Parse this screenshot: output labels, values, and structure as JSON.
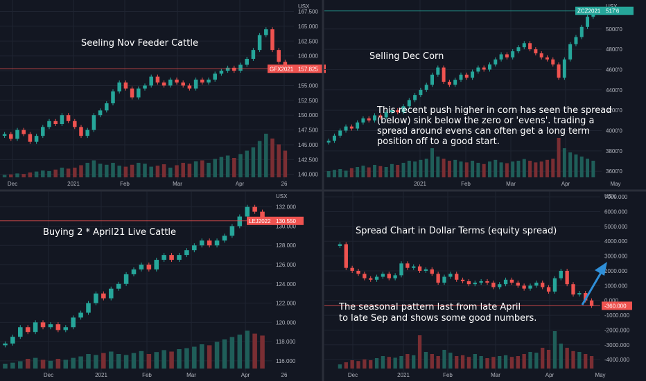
{
  "colors": {
    "background": "#131722",
    "grid": "#1f2431",
    "separator": "#2a2e39",
    "up": "#26a69a",
    "down": "#ef5350",
    "vol_up": "#1f5e59",
    "vol_down": "#7a2e33",
    "arrow": "#2f8fd8"
  },
  "chart_data": [
    {
      "name": "panel-feeder-cattle",
      "type": "candlestick",
      "title": "",
      "annotations": [
        "Seeling Nov Feeder Cattle"
      ],
      "y_axis_label": "USX",
      "y_ticks": [
        "167.500",
        "165.000",
        "162.500",
        "160.000",
        "157.500",
        "155.000",
        "152.500",
        "150.000",
        "147.500",
        "145.000",
        "142.500",
        "140.000"
      ],
      "y_tick_values": [
        167.5,
        165,
        162.5,
        160,
        157.5,
        155,
        152.5,
        150,
        147.5,
        145,
        142.5,
        140
      ],
      "x_ticks": [
        "Dec",
        "2021",
        "Feb",
        "Mar",
        "Apr",
        "26"
      ],
      "last_price_label": "GFX2021",
      "last_price_value": "157.825",
      "last_price": 157.825,
      "ylim": [
        139.5,
        168.5
      ],
      "path": [
        146.8,
        146.0,
        147.5,
        146.8,
        145.5,
        146.5,
        148.0,
        149.0,
        148.5,
        150.0,
        149.0,
        148.0,
        146.5,
        147.5,
        150.0,
        150.8,
        152.0,
        154.0,
        155.5,
        154.5,
        153.0,
        154.5,
        155.0,
        156.5,
        155.5,
        155.0,
        156.0,
        155.5,
        155.0,
        154.5,
        156.0,
        155.5,
        156.0,
        157.0,
        157.5,
        158.0,
        157.5,
        158.5,
        159.5,
        161.0,
        163.5,
        164.5,
        161.0,
        159.0,
        157.8
      ],
      "volume": [
        0.05,
        0.06,
        0.08,
        0.07,
        0.1,
        0.12,
        0.14,
        0.13,
        0.16,
        0.2,
        0.18,
        0.2,
        0.25,
        0.3,
        0.35,
        0.28,
        0.26,
        0.3,
        0.24,
        0.22,
        0.26,
        0.3,
        0.28,
        0.22,
        0.24,
        0.27,
        0.2,
        0.25,
        0.3,
        0.28,
        0.33,
        0.35,
        0.3,
        0.38,
        0.42,
        0.45,
        0.4,
        0.48,
        0.55,
        0.62,
        0.75,
        0.9,
        0.8,
        0.68,
        0.55
      ]
    },
    {
      "name": "panel-corn",
      "type": "candlestick",
      "title": "",
      "annotations": [
        "Selling Dec Corn",
        "This recent push higher in corn has seen the spread",
        "(below) sink below the zero or 'evens'. trading a",
        "spread around evens can often get a long term",
        "position off to a good start."
      ],
      "y_axis_label": "USX",
      "y_ticks": [
        "5000'0",
        "4800'0",
        "4600'0",
        "4400'0",
        "4200'0",
        "4000'0",
        "3800'0",
        "3600'0"
      ],
      "y_tick_values": [
        500,
        480,
        460,
        440,
        420,
        400,
        380,
        360
      ],
      "x_ticks": [
        "2021",
        "Feb",
        "Mar",
        "Apr",
        "May"
      ],
      "last_price_label": "ZCZ2021",
      "last_price_value": "517'6",
      "last_price": 517.75,
      "ylim": [
        354,
        523
      ],
      "path": [
        390,
        395,
        400,
        404,
        402,
        408,
        412,
        410,
        415,
        413,
        418,
        420,
        418,
        424,
        430,
        435,
        440,
        445,
        455,
        462,
        448,
        445,
        450,
        455,
        452,
        458,
        462,
        460,
        465,
        470,
        475,
        472,
        478,
        482,
        486,
        480,
        476,
        472,
        470,
        465,
        452,
        470,
        485,
        492,
        502,
        512,
        517
      ],
      "volume": [
        0.15,
        0.18,
        0.2,
        0.16,
        0.22,
        0.25,
        0.28,
        0.24,
        0.3,
        0.27,
        0.25,
        0.32,
        0.3,
        0.35,
        0.4,
        0.38,
        0.42,
        0.45,
        0.7,
        0.5,
        0.45,
        0.4,
        0.42,
        0.38,
        0.36,
        0.4,
        0.35,
        0.32,
        0.38,
        0.42,
        0.36,
        0.34,
        0.38,
        0.4,
        0.44,
        0.4,
        0.36,
        0.38,
        0.42,
        0.45,
        0.95,
        0.7,
        0.6,
        0.55,
        0.5,
        0.45,
        0.4
      ]
    },
    {
      "name": "panel-live-cattle",
      "type": "candlestick",
      "title": "",
      "annotations": [
        "Buying 2 * April21 Live Cattle"
      ],
      "y_axis_label": "USX",
      "y_ticks": [
        "132.000",
        "130.000",
        "128.000",
        "126.000",
        "124.000",
        "122.000",
        "120.000",
        "118.000",
        "116.000"
      ],
      "y_tick_values": [
        132,
        130,
        128,
        126,
        124,
        122,
        120,
        118,
        116
      ],
      "x_ticks": [
        "Dec",
        "2021",
        "Feb",
        "Mar",
        "Apr",
        "26"
      ],
      "last_price_label": "LEJ2022",
      "last_price_value": "130.550",
      "last_price": 130.55,
      "ylim": [
        115.2,
        133.2
      ],
      "path": [
        117.8,
        118.5,
        119.5,
        119.0,
        120.0,
        119.5,
        119.8,
        119.2,
        119.5,
        120.5,
        121.0,
        122.0,
        123.0,
        122.5,
        123.5,
        124.0,
        125.0,
        125.5,
        126.0,
        125.5,
        126.5,
        127.0,
        126.5,
        127.0,
        127.5,
        128.0,
        128.5,
        128.0,
        128.5,
        129.0,
        130.0,
        131.0,
        132.0,
        131.5,
        130.5
      ],
      "volume": [
        0.1,
        0.12,
        0.15,
        0.2,
        0.22,
        0.18,
        0.16,
        0.2,
        0.18,
        0.22,
        0.25,
        0.3,
        0.28,
        0.32,
        0.35,
        0.3,
        0.28,
        0.32,
        0.36,
        0.3,
        0.34,
        0.38,
        0.35,
        0.4,
        0.42,
        0.45,
        0.5,
        0.48,
        0.55,
        0.6,
        0.65,
        0.7,
        0.78,
        0.72,
        0.68
      ]
    },
    {
      "name": "panel-spread",
      "type": "candlestick",
      "title": "",
      "annotations": [
        "Spread Chart in Dollar Terms (equity spread)",
        "The seasonal pattern last from late April",
        "to late Sep and shows some good numbers."
      ],
      "y_axis_label": "USX",
      "y_ticks": [
        "7000.000",
        "6000.000",
        "5000.000",
        "4000.000",
        "3000.000",
        "2000.000",
        "1000.000",
        "0.000",
        "-1000.000",
        "-2000.000",
        "-3000.000",
        "-4000.000"
      ],
      "y_tick_values": [
        7000,
        6000,
        5000,
        4000,
        3000,
        2000,
        1000,
        0,
        -1000,
        -2000,
        -3000,
        -4000
      ],
      "x_ticks": [
        "Dec",
        "2021",
        "Feb",
        "Mar",
        "Apr",
        "May"
      ],
      "last_price_label": "",
      "last_price_value": "-360.000",
      "last_price": -360,
      "ylim": [
        -4600,
        7100
      ],
      "path": [
        3800,
        2200,
        2000,
        1800,
        1500,
        1400,
        1600,
        1800,
        1500,
        1700,
        2500,
        2200,
        2300,
        2000,
        2100,
        1800,
        1200,
        1600,
        1800,
        1400,
        1300,
        1100,
        1200,
        1300,
        1200,
        900,
        1100,
        1400,
        1200,
        1000,
        800,
        1000,
        1200,
        900,
        600,
        1500,
        2000,
        1100,
        400,
        500,
        0,
        -360
      ],
      "volume": [
        0.1,
        0.15,
        0.2,
        0.18,
        0.22,
        0.2,
        0.25,
        0.3,
        0.28,
        0.26,
        0.3,
        0.35,
        0.32,
        0.8,
        0.4,
        0.35,
        0.3,
        0.45,
        0.38,
        0.3,
        0.32,
        0.28,
        0.35,
        0.3,
        0.25,
        0.28,
        0.3,
        0.32,
        0.28,
        0.3,
        0.35,
        0.4,
        0.38,
        0.5,
        0.45,
        0.9,
        0.6,
        0.5,
        0.42,
        0.4,
        0.35,
        0.3
      ]
    }
  ]
}
